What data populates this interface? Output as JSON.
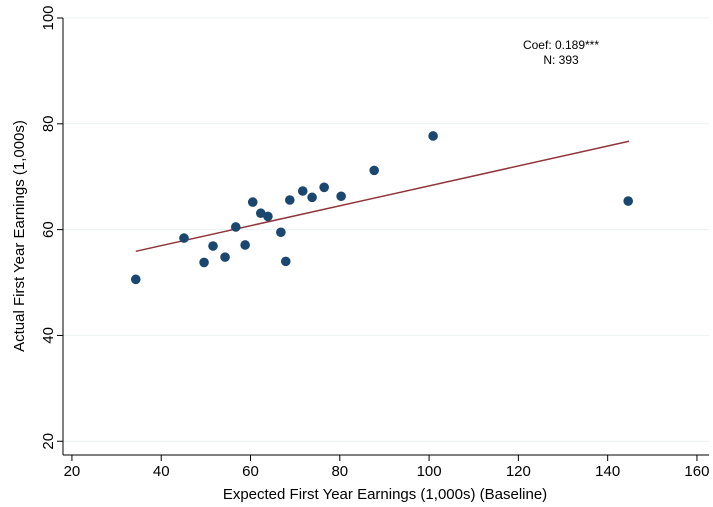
{
  "chart_data": {
    "type": "scatter",
    "x_label": "Expected First Year Earnings (1,000s) (Baseline)",
    "y_label": "Actual First Year Earnings (1,000s)",
    "annotations": [
      "Coef: 0.189***",
      "N: 393"
    ],
    "series": [
      {
        "color": "#1a476f",
        "x": [
          34.3,
          45.1,
          49.6,
          51.6,
          54.3,
          56.7,
          58.8,
          60.5,
          62.3,
          63.9,
          66.8,
          67.9,
          68.8,
          71.7,
          73.8,
          76.5,
          80.3,
          87.7,
          100.9,
          144.6
        ],
        "values": [
          50.6,
          58.4,
          53.8,
          56.9,
          54.8,
          60.5,
          57.1,
          65.2,
          63.1,
          62.5,
          59.5,
          54.0,
          65.6,
          67.3,
          66.1,
          68.0,
          66.3,
          71.2,
          77.7,
          65.4
        ]
      }
    ],
    "fit_line": {
      "color": "#90353b",
      "x": [
        34.3,
        144.8
      ],
      "values": [
        55.9,
        76.7
      ]
    },
    "xlim": [
      18,
      162.7
    ],
    "ylim": [
      17.4,
      100
    ],
    "xticks": [
      20,
      40,
      60,
      80,
      100,
      120,
      140,
      160
    ],
    "yticks": [
      20,
      40,
      60,
      80,
      100
    ],
    "grid": true
  }
}
